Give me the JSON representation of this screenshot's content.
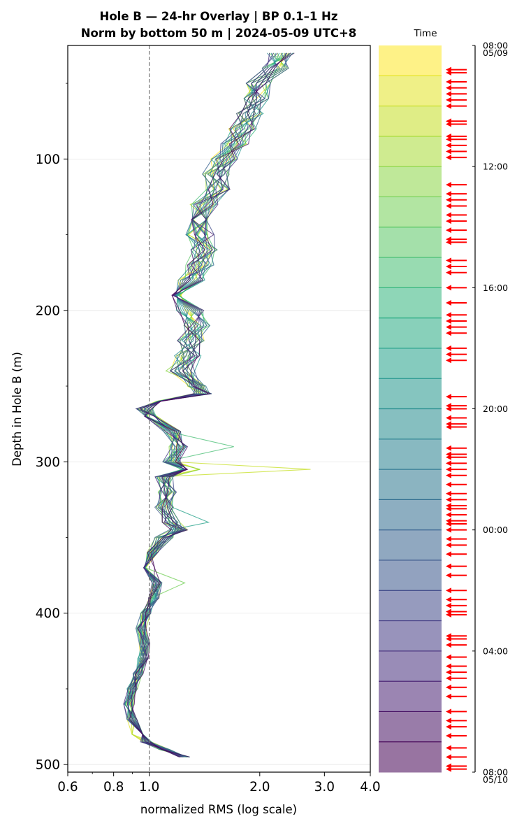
{
  "chart_data": {
    "type": "line",
    "title_line1": "Hole B — 24-hr Overlay  |  BP 0.1–1 Hz",
    "title_line2": "Norm by bottom 50 m  |  2024-05-09 UTC+8",
    "xlabel": "normalized RMS  (log scale)",
    "ylabel": "Depth in Hole B (m)",
    "xscale": "log",
    "xlim": [
      0.6,
      4.0
    ],
    "ylim": [
      505,
      25
    ],
    "xticks": [
      {
        "value": 0.6,
        "label": "0.6"
      },
      {
        "value": 0.8,
        "label": "0.8"
      },
      {
        "value": 1.0,
        "label": "1.0"
      },
      {
        "value": 2.0,
        "label": "2.0"
      },
      {
        "value": 3.0,
        "label": "3.0"
      },
      {
        "value": 4.0,
        "label": "4.0"
      }
    ],
    "yticks": [
      {
        "value": 100,
        "label": "100"
      },
      {
        "value": 200,
        "label": "200"
      },
      {
        "value": 300,
        "label": "300"
      },
      {
        "value": 400,
        "label": "400"
      },
      {
        "value": 500,
        "label": "500"
      }
    ],
    "reference_line": {
      "x": 1.0,
      "style": "dashed"
    },
    "grid": "horizontal",
    "profile": {
      "depth": [
        30,
        40,
        50,
        60,
        70,
        80,
        90,
        100,
        110,
        120,
        130,
        140,
        150,
        160,
        170,
        180,
        190,
        200,
        210,
        220,
        230,
        240,
        250,
        255,
        260,
        265,
        270,
        280,
        290,
        300,
        305,
        310,
        320,
        330,
        340,
        345,
        350,
        360,
        370,
        380,
        390,
        400,
        410,
        420,
        430,
        440,
        450,
        460,
        470,
        480,
        485,
        490,
        495
      ],
      "rms": [
        2.3,
        2.2,
        2.0,
        1.95,
        1.88,
        1.8,
        1.72,
        1.6,
        1.52,
        1.55,
        1.42,
        1.35,
        1.38,
        1.42,
        1.38,
        1.3,
        1.26,
        1.3,
        1.35,
        1.3,
        1.28,
        1.22,
        1.35,
        1.4,
        1.1,
        0.98,
        1.0,
        1.15,
        1.2,
        1.15,
        1.3,
        1.1,
        1.12,
        1.1,
        1.15,
        1.2,
        1.1,
        1.02,
        1.0,
        1.05,
        1.03,
        0.98,
        0.95,
        0.97,
        0.96,
        0.93,
        0.9,
        0.88,
        0.9,
        0.93,
        0.98,
        1.1,
        1.25
      ]
    },
    "series_colors": [
      "#fde725",
      "#c2df23",
      "#86d549",
      "#52c569",
      "#2ab07f",
      "#1e9b8a",
      "#25858e",
      "#2d708e",
      "#38588c",
      "#433e85",
      "#482173",
      "#440154"
    ],
    "n_series": 24,
    "colorbar": {
      "label": "Time",
      "start_label": "08:00",
      "start_date": "05/09",
      "end_label": "08:00",
      "end_date": "05/10",
      "ticks": [
        "08:00",
        "12:00",
        "16:00",
        "20:00",
        "00:00",
        "04:00",
        "08:00"
      ],
      "hours_span": 24,
      "n_bands": 24,
      "color_top": "#fde725",
      "color_bottom": "#440154"
    },
    "arrows_hours": [
      0.8,
      0.9,
      1.2,
      1.4,
      1.6,
      1.8,
      2.0,
      2.5,
      2.6,
      3.0,
      3.1,
      3.3,
      3.5,
      3.7,
      4.6,
      4.9,
      5.1,
      5.3,
      5.6,
      5.8,
      6.1,
      6.4,
      6.5,
      7.1,
      7.3,
      7.5,
      8.0,
      8.5,
      8.9,
      9.1,
      9.3,
      9.5,
      10.0,
      10.2,
      10.4,
      11.6,
      11.9,
      12.0,
      12.3,
      12.5,
      12.6,
      13.3,
      13.5,
      13.6,
      13.8,
      14.0,
      14.2,
      14.5,
      14.8,
      15.0,
      15.2,
      15.3,
      15.5,
      15.7,
      15.8,
      16.0,
      16.3,
      16.5,
      16.8,
      17.2,
      17.5,
      18.0,
      18.3,
      18.5,
      18.7,
      18.8,
      19.5,
      19.6,
      19.8,
      20.2,
      20.5,
      20.7,
      20.9,
      21.2,
      21.5,
      22.0,
      22.3,
      22.5,
      22.8,
      23.2,
      23.5,
      23.8,
      23.9
    ],
    "arrow_color": "#ff0000"
  }
}
